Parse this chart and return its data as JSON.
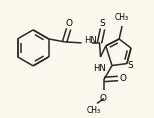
{
  "bg_color": "#fdf8ee",
  "bond_color": "#2a2a2a",
  "text_color": "#000000",
  "figsize": [
    1.54,
    1.18
  ],
  "dpi": 100,
  "xlim": [
    0,
    154
  ],
  "ylim": [
    0,
    118
  ]
}
